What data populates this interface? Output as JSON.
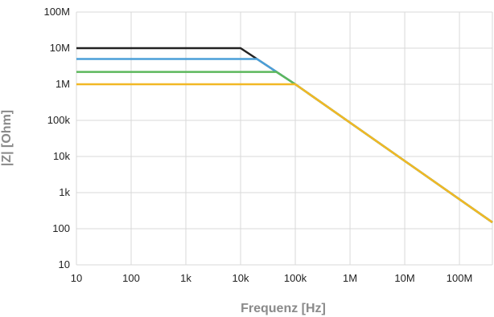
{
  "chart_data": {
    "type": "line",
    "title": "",
    "xlabel": "Frequenz [Hz]",
    "ylabel": "|Z| [Ohm]",
    "x_scale": "log",
    "y_scale": "log",
    "xlim": [
      10,
      400000000
    ],
    "ylim": [
      10,
      100000000
    ],
    "x_ticks": [
      {
        "value": 10,
        "label": "10"
      },
      {
        "value": 100,
        "label": "100"
      },
      {
        "value": 1000,
        "label": "1k"
      },
      {
        "value": 10000,
        "label": "10k"
      },
      {
        "value": 100000,
        "label": "100k"
      },
      {
        "value": 1000000,
        "label": "1M"
      },
      {
        "value": 10000000,
        "label": "10M"
      },
      {
        "value": 100000000,
        "label": "100M"
      }
    ],
    "y_ticks": [
      {
        "value": 10,
        "label": "10"
      },
      {
        "value": 100,
        "label": "100"
      },
      {
        "value": 1000,
        "label": "1k"
      },
      {
        "value": 10000,
        "label": "10k"
      },
      {
        "value": 100000,
        "label": "100k"
      },
      {
        "value": 1000000,
        "label": "1M"
      },
      {
        "value": 10000000,
        "label": "10M"
      },
      {
        "value": 100000000,
        "label": "100M"
      }
    ],
    "grid": true,
    "legend": false,
    "series": [
      {
        "color": "#222222",
        "x": [
          10,
          10000,
          100000,
          400000000
        ],
        "y": [
          10000000,
          10000000,
          1000000,
          150
        ]
      },
      {
        "color": "#4a9fd8",
        "x": [
          10,
          20000,
          100000,
          400000000
        ],
        "y": [
          5000000,
          5000000,
          1000000,
          150
        ]
      },
      {
        "color": "#5cb85c",
        "x": [
          10,
          45000,
          100000,
          400000000
        ],
        "y": [
          2200000,
          2200000,
          1000000,
          150
        ]
      },
      {
        "color": "#f2b824",
        "x": [
          10,
          100000,
          400000000
        ],
        "y": [
          1000000,
          1000000,
          150
        ]
      }
    ]
  }
}
